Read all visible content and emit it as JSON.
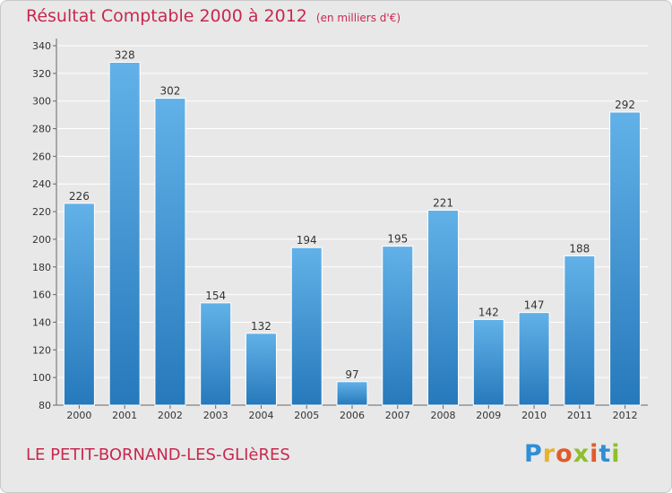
{
  "header": {
    "title": "Résultat Comptable 2000 à 2012",
    "subtitle": "(en milliers d'€)"
  },
  "footer": {
    "place": "LE PETIT-BORNAND-LES-GLIèRES"
  },
  "logo": {
    "letters": [
      "P",
      "r",
      "o",
      "x",
      "i",
      "t",
      "i"
    ],
    "colors": [
      "#2e8fd6",
      "#e8b22a",
      "#e05a2a",
      "#8fbf2a",
      "#e05a2a",
      "#2e8fd6",
      "#8fbf2a"
    ]
  },
  "colors": {
    "bar": "#3a8fd4",
    "bar_light": "#62b1e8",
    "bar_dark": "#2679bb",
    "title": "#c8284e"
  },
  "chart_data": {
    "type": "bar",
    "title": "Résultat Comptable 2000 à 2012",
    "xlabel": "",
    "ylabel": "(en milliers d'€)",
    "categories": [
      "2000",
      "2001",
      "2002",
      "2003",
      "2004",
      "2005",
      "2006",
      "2007",
      "2008",
      "2009",
      "2010",
      "2011",
      "2012"
    ],
    "values": [
      226,
      328,
      302,
      154,
      132,
      194,
      97,
      195,
      221,
      142,
      147,
      188,
      292
    ],
    "ylim": [
      80,
      340
    ],
    "yticks": [
      80,
      100,
      120,
      140,
      160,
      180,
      200,
      220,
      240,
      260,
      280,
      300,
      320,
      340
    ],
    "grid": true
  }
}
